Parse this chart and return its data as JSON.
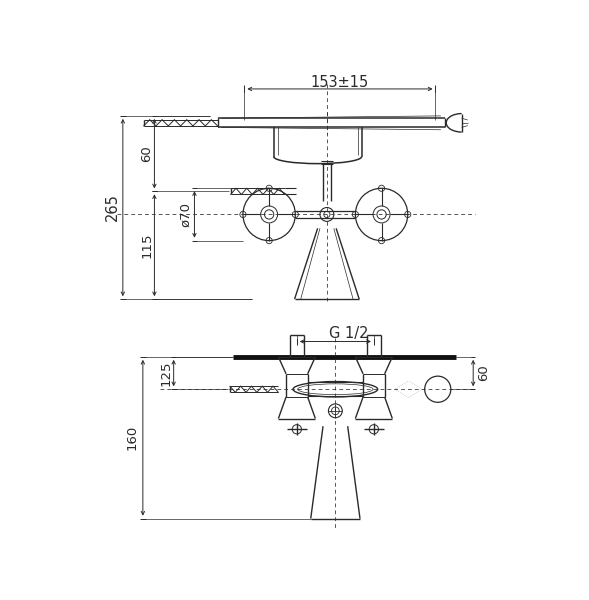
{
  "bg_color": "#ffffff",
  "lc": "#2a2a2a",
  "dc": "#2a2a2a",
  "fig_w": 5.89,
  "fig_h": 6.0,
  "texts": {
    "dim_153": "153±15",
    "dim_265": "265",
    "dim_60t": "60",
    "dim_115": "115",
    "dim_70": "ø70",
    "dim_G12": "G 1/2",
    "dim_160": "160",
    "dim_125": "125",
    "dim_60b": "60"
  }
}
